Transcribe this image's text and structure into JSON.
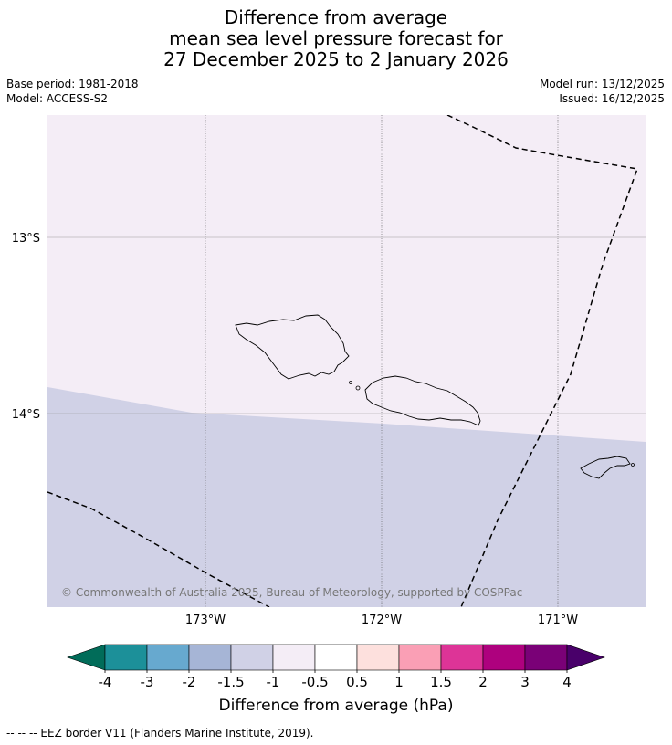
{
  "title": {
    "line1": "Difference from average",
    "line2": "mean sea level pressure forecast for",
    "line3": "27 December 2025 to 2 January 2026"
  },
  "meta": {
    "base_period": "Base period: 1981-2018",
    "model": "Model: ACCESS-S2",
    "model_run": "Model run: 13/12/2025",
    "issued": "Issued: 16/12/2025"
  },
  "map": {
    "lat_labels": [
      "13°S",
      "14°S"
    ],
    "lon_labels": [
      "173°W",
      "172°W",
      "171°W"
    ],
    "copyright": "© Commonwealth of Australia 2025, Bureau of Meteorology, supported by COSPPac",
    "region_colors": {
      "upper": "#f4edf6",
      "lower": "#d0d1e6"
    }
  },
  "colorbar": {
    "label": "Difference from average (hPa)",
    "ticks": [
      "-4",
      "-3",
      "-2",
      "-1.5",
      "-1",
      "-0.5",
      "0.5",
      "1",
      "1.5",
      "2",
      "3",
      "4"
    ],
    "low_extend_color": "#016c59",
    "high_extend_color": "#49006a",
    "colors": [
      "#1c9099",
      "#67a9cf",
      "#a6b5d6",
      "#d0d1e6",
      "#f4edf6",
      "#ffffff",
      "#fde0dd",
      "#fa9fb5",
      "#dd3497",
      "#ae017e",
      "#7a0177"
    ]
  },
  "legend": {
    "eez_text": "--  --  -- EEZ border V11 (Flanders Marine Institute, 2019)."
  }
}
